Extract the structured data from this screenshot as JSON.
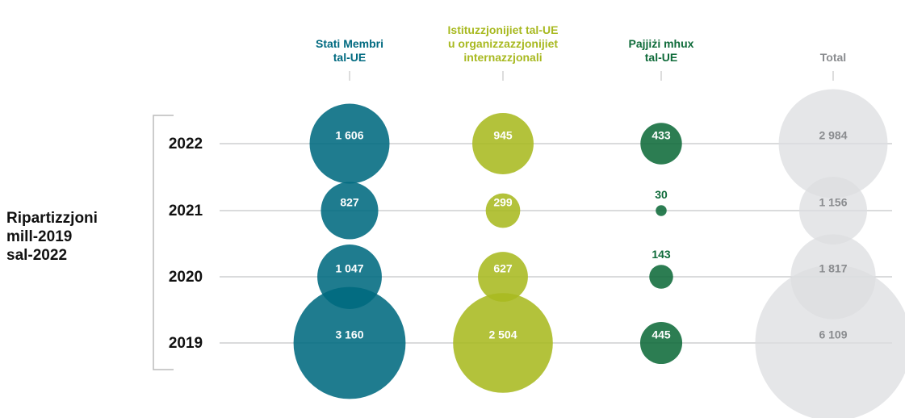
{
  "chart_data": {
    "type": "bubble",
    "side_label": "Ripartizzjoni\nmill-2019\nsal-2022",
    "categories": [
      "2022",
      "2021",
      "2020",
      "2019"
    ],
    "series": [
      {
        "name": "Stati Membri\ntal-UE",
        "color": "#006a80",
        "label_color": "#ffffff",
        "values": [
          1606,
          827,
          1047,
          3160
        ],
        "value_labels": [
          "1 606",
          "827",
          "1 047",
          "3 160"
        ]
      },
      {
        "name": "Istituzzjonijiet tal-UE\nu organizzazzjonijiet\ninternazzjonali",
        "color": "#a8b920",
        "label_color": "#ffffff",
        "values": [
          945,
          299,
          627,
          2504
        ],
        "value_labels": [
          "945",
          "299",
          "627",
          "2 504"
        ]
      },
      {
        "name": "Pajjiżi mhux\ntal-UE",
        "color": "#0f6b3a",
        "label_color": "#ffffff",
        "values": [
          433,
          30,
          143,
          445
        ],
        "value_labels": [
          "433",
          "30",
          "143",
          "445"
        ]
      },
      {
        "name": "Total",
        "color": "#dcdde0",
        "label_color": "#8a8c8f",
        "values": [
          2984,
          1156,
          1817,
          6109
        ],
        "value_labels": [
          "2 984",
          "1 156",
          "1 817",
          "6 109"
        ]
      }
    ]
  }
}
